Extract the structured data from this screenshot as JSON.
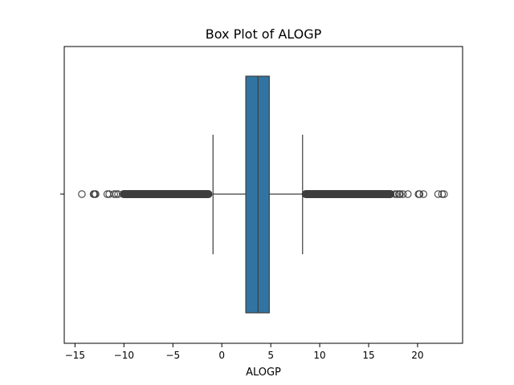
{
  "chart_data": {
    "type": "box",
    "title": "Box Plot of ALOGP",
    "xlabel": "ALOGP",
    "ylabel": "",
    "xlim": [
      -16.1,
      24.6
    ],
    "xticks": [
      -15,
      -10,
      -5,
      0,
      5,
      10,
      15,
      20
    ],
    "xtick_labels": [
      "−15",
      "−10",
      "−5",
      "0",
      "5",
      "10",
      "15",
      "20"
    ],
    "grid": false,
    "box": {
      "whisker_low": -0.9,
      "q1": 2.45,
      "median": 3.7,
      "q3": 4.85,
      "whisker_high": 8.25
    },
    "outliers_dense_ranges": [
      [
        -10.4,
        -1.0
      ],
      [
        8.2,
        17.6
      ]
    ],
    "outliers": [
      -14.3,
      -13.1,
      -13.0,
      -12.9,
      -11.7,
      -11.5,
      -11.0,
      -10.8,
      -10.6,
      17.7,
      17.9,
      18.1,
      18.2,
      18.5,
      19.0,
      20.1,
      20.2,
      20.6,
      22.1,
      22.5,
      22.7
    ],
    "colors": {
      "box_fill": "#3274a1",
      "lines": "#3d3d3d"
    }
  }
}
